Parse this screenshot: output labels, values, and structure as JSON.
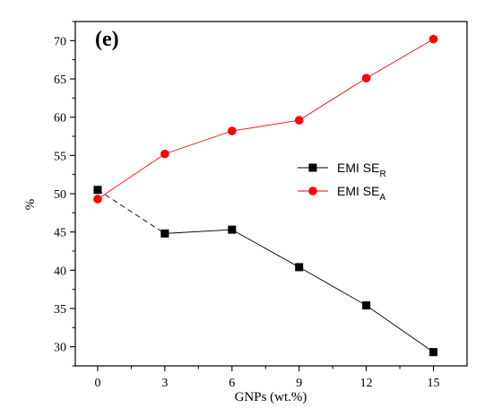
{
  "chart_data": {
    "type": "line",
    "panel_label": "(e)",
    "xlabel": "GNPs (wt.%)",
    "ylabel": "%",
    "x": [
      0,
      3,
      6,
      9,
      12,
      15
    ],
    "xticks": [
      "0",
      "3",
      "6",
      "9",
      "12",
      "15"
    ],
    "xlim": [
      -1,
      16.5
    ],
    "yticks": [
      "30",
      "35",
      "40",
      "45",
      "50",
      "55",
      "60",
      "65",
      "70"
    ],
    "ylim": [
      27.5,
      72.5
    ],
    "grid": false,
    "legend_position": "center-right",
    "series": [
      {
        "name": "EMI SE",
        "name_sub": "R",
        "marker": "square",
        "color": "#000000",
        "values": [
          50.5,
          44.8,
          45.3,
          40.4,
          35.4,
          29.3
        ]
      },
      {
        "name": "EMI SE",
        "name_sub": "A",
        "marker": "circle",
        "color": "#ff0000",
        "values": [
          49.3,
          55.2,
          58.2,
          59.6,
          65.1,
          70.2
        ]
      }
    ]
  }
}
